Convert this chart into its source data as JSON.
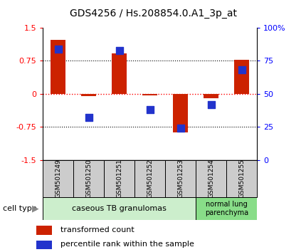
{
  "title": "GDS4256 / Hs.208854.0.A1_3p_at",
  "samples": [
    "GSM501249",
    "GSM501250",
    "GSM501251",
    "GSM501252",
    "GSM501253",
    "GSM501254",
    "GSM501255"
  ],
  "transformed_count": [
    1.22,
    -0.05,
    0.92,
    -0.03,
    -0.88,
    -0.1,
    0.78
  ],
  "percentile_rank": [
    84,
    32,
    83,
    38,
    24,
    42,
    68
  ],
  "ylim_left": [
    -1.5,
    1.5
  ],
  "ylim_right": [
    0,
    100
  ],
  "yticks_left": [
    -1.5,
    -0.75,
    0,
    0.75,
    1.5
  ],
  "yticks_right": [
    0,
    25,
    50,
    75,
    100
  ],
  "ytick_labels_right": [
    "0",
    "25",
    "50",
    "75",
    "100%"
  ],
  "hlines_dotted": [
    0.75,
    -0.75
  ],
  "group1_samples": [
    0,
    1,
    2,
    3,
    4
  ],
  "group2_samples": [
    5,
    6
  ],
  "group1_label": "caseous TB granulomas",
  "group2_label": "normal lung\nparenchyma",
  "cell_type_label": "cell type",
  "legend_red": "transformed count",
  "legend_blue": "percentile rank within the sample",
  "bar_color": "#cc2200",
  "dot_color": "#2233cc",
  "bar_width": 0.5,
  "dot_size": 45,
  "group1_bg": "#cceecc",
  "group2_bg": "#88dd88",
  "sample_bg": "#cccccc",
  "title_fontsize": 10
}
